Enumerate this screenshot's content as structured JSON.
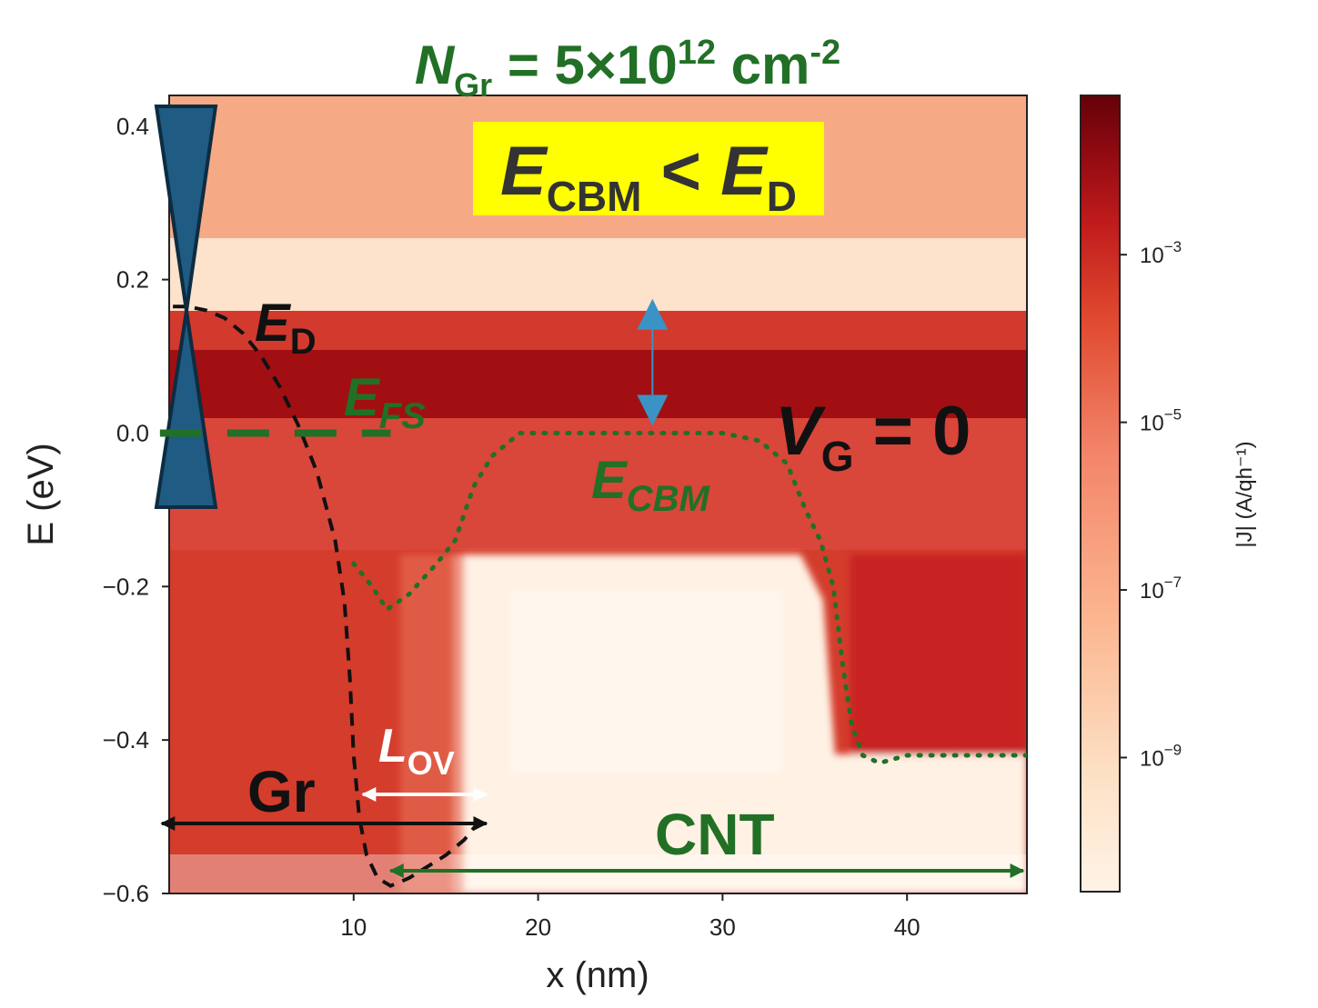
{
  "colors": {
    "green": "#217026",
    "black": "#111111",
    "cone": "#1f5b82",
    "blue_arrow": "#3a93c4",
    "highlight": "#ffff00",
    "white": "#ffffff",
    "colormap": [
      "#fff3e6",
      "#fde0c4",
      "#fbb48e",
      "#f3856a",
      "#e0492f",
      "#c01b1c",
      "#8f0a12",
      "#650108"
    ]
  },
  "chart_data": {
    "type": "heatmap",
    "title": {
      "sym": "N",
      "sub": "Gr",
      "eq": " = 5×10",
      "sup1": "12",
      "unit": " cm",
      "sup2": "-2"
    },
    "xlabel": "x (nm)",
    "ylabel": "E (eV)",
    "colorbar_label": "|J| (A/qh⁻¹)",
    "xlim": [
      0,
      46.5
    ],
    "ylim": [
      -0.6,
      0.44
    ],
    "x_ticks": [
      10,
      20,
      30,
      40
    ],
    "y_ticks": [
      {
        "value": 0.4,
        "label": "0.4"
      },
      {
        "value": 0.2,
        "label": "0.2"
      },
      {
        "value": 0.0,
        "label": "0.0"
      },
      {
        "value": -0.2,
        "label": "−0.2"
      },
      {
        "value": -0.4,
        "label": "−0.4"
      },
      {
        "value": -0.6,
        "label": "−0.6"
      }
    ],
    "colorbar": {
      "log_range": [
        -10.6,
        -1.1
      ],
      "ticks": [
        {
          "log": -3,
          "base": "10",
          "exp": "−3"
        },
        {
          "log": -5,
          "base": "10",
          "exp": "−5"
        },
        {
          "log": -7,
          "base": "10",
          "exp": "−7"
        },
        {
          "log": -9,
          "base": "10",
          "exp": "−9"
        }
      ]
    },
    "series": [
      {
        "key": "E_D",
        "style": "dashed",
        "points": [
          [
            0.2,
            0.165
          ],
          [
            1,
            0.165
          ],
          [
            2,
            0.16
          ],
          [
            3,
            0.15
          ],
          [
            4,
            0.13
          ],
          [
            5,
            0.1
          ],
          [
            6,
            0.06
          ],
          [
            7,
            0.01
          ],
          [
            8,
            -0.05
          ],
          [
            9,
            -0.14
          ],
          [
            9.5,
            -0.22
          ],
          [
            9.8,
            -0.32
          ],
          [
            10,
            -0.42
          ],
          [
            10.3,
            -0.5
          ],
          [
            10.7,
            -0.55
          ],
          [
            11.3,
            -0.58
          ],
          [
            12,
            -0.59
          ],
          [
            13,
            -0.58
          ],
          [
            14,
            -0.565
          ],
          [
            15,
            -0.55
          ],
          [
            16,
            -0.53
          ],
          [
            17,
            -0.5
          ]
        ]
      },
      {
        "key": "E_CBM",
        "style": "dotted",
        "points": [
          [
            10,
            -0.17
          ],
          [
            11,
            -0.2
          ],
          [
            11.8,
            -0.23
          ],
          [
            13,
            -0.21
          ],
          [
            14.5,
            -0.17
          ],
          [
            15.5,
            -0.14
          ],
          [
            16.5,
            -0.07
          ],
          [
            17.5,
            -0.03
          ],
          [
            19,
            0.0
          ],
          [
            21,
            0.0
          ],
          [
            25,
            0.0
          ],
          [
            30,
            0.0
          ],
          [
            32,
            -0.01
          ],
          [
            33.5,
            -0.04
          ],
          [
            34.5,
            -0.1
          ],
          [
            35.3,
            -0.14
          ],
          [
            36,
            -0.2
          ],
          [
            36.5,
            -0.3
          ],
          [
            37,
            -0.38
          ],
          [
            37.6,
            -0.42
          ],
          [
            38.5,
            -0.43
          ],
          [
            40,
            -0.42
          ],
          [
            46.5,
            -0.42
          ]
        ]
      },
      {
        "key": "E_FS",
        "style": "dashed",
        "points": [
          [
            -0.5,
            0.0
          ],
          [
            12,
            0.0
          ]
        ]
      }
    ],
    "annotations": {
      "condition": {
        "a": "E",
        "a_sub": "CBM",
        "op": " < ",
        "b": "E",
        "b_sub": "D"
      },
      "ed_label": {
        "sym": "E",
        "sub": "D"
      },
      "efs_label": {
        "sym": "E",
        "sub": "FS"
      },
      "ecbm_label": {
        "sym": "E",
        "sub": "CBM"
      },
      "vg_label": {
        "sym": "V",
        "sub": "G",
        "eq": " = 0"
      },
      "lov_label": {
        "sym": "L",
        "sub": "OV"
      },
      "gr_label": "Gr",
      "cnt_label": "CNT",
      "gr_region": [
        -0.4,
        17.2
      ],
      "lov_region": [
        10.5,
        17.2
      ],
      "cnt_region": [
        12,
        46.3
      ],
      "blue_arrow": {
        "x": 26.2,
        "y_from": 0.0,
        "y_to": 0.175
      }
    }
  }
}
